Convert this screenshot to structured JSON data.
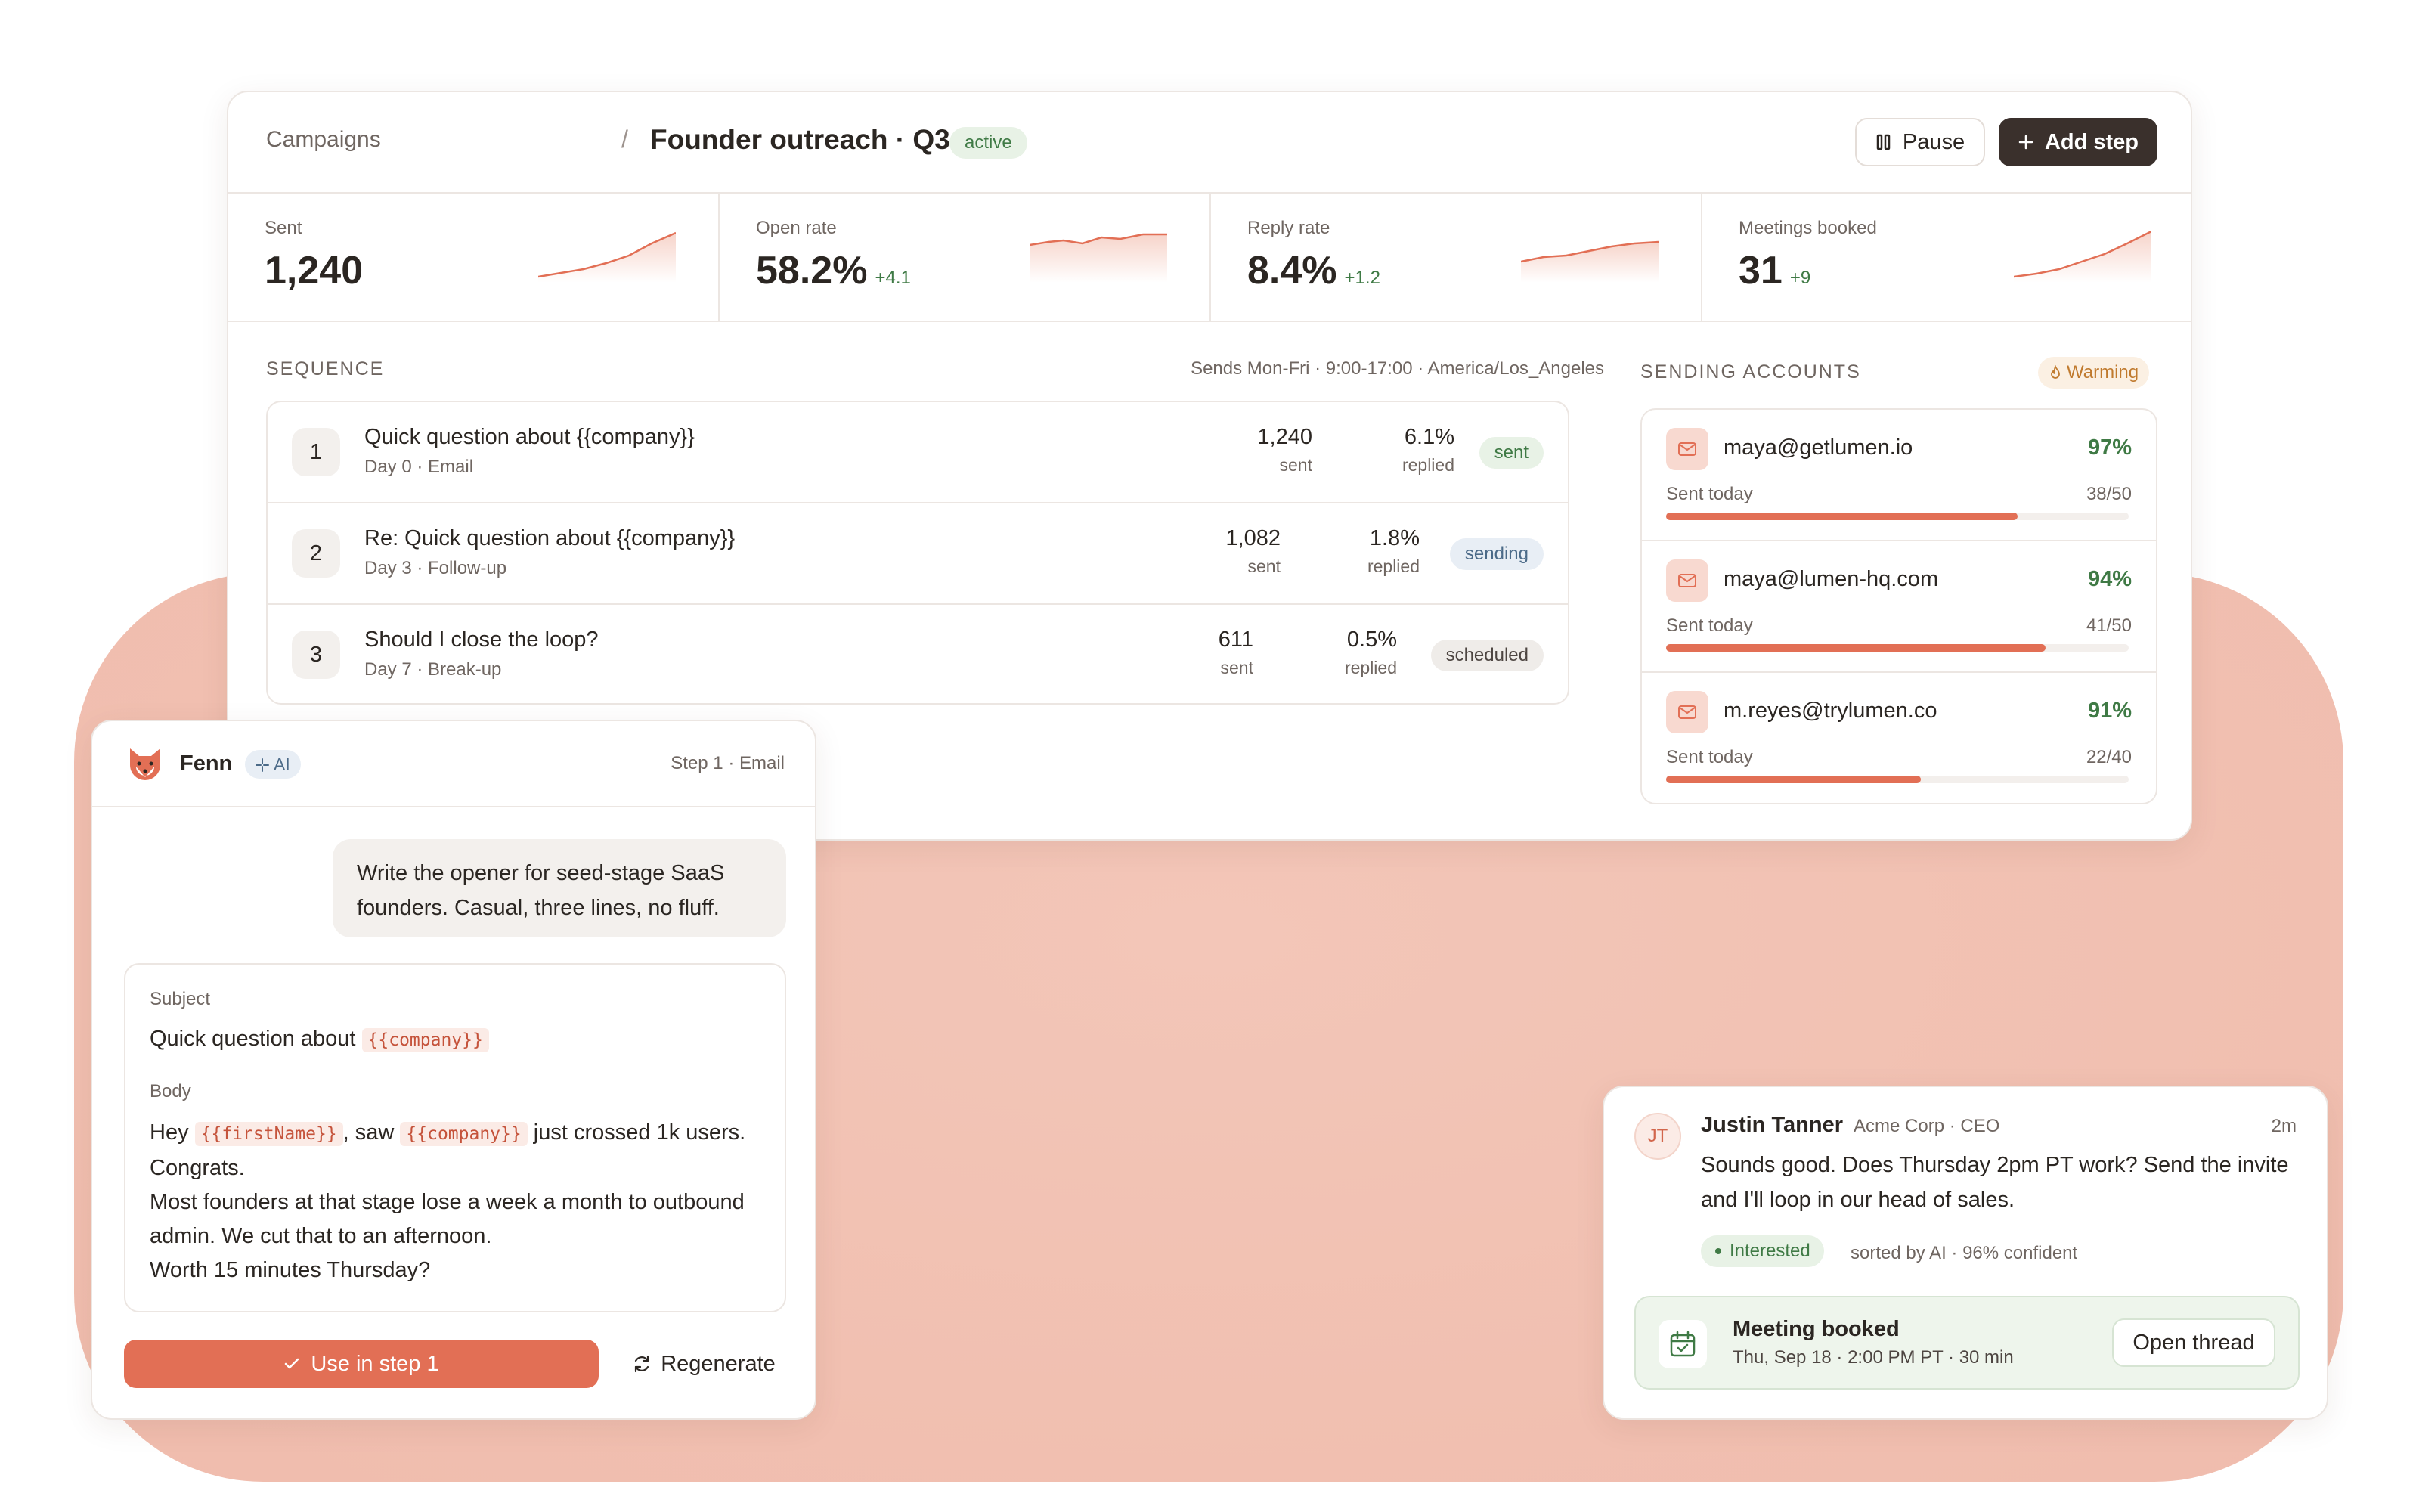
{
  "header": {
    "breadcrumb_root": "Campaigns",
    "breadcrumb_sep": "/",
    "title": "Founder outreach · Q3",
    "status": "active",
    "pause_label": "Pause",
    "add_step_label": "Add step"
  },
  "stats": [
    {
      "label": "Sent",
      "value": "1,240",
      "delta": ""
    },
    {
      "label": "Open rate",
      "value": "58.2%",
      "delta": "+4.1"
    },
    {
      "label": "Reply rate",
      "value": "8.4%",
      "delta": "+1.2"
    },
    {
      "label": "Meetings booked",
      "value": "31",
      "delta": "+9"
    }
  ],
  "sequence": {
    "label": "SEQUENCE",
    "schedule": "Sends Mon-Fri · 9:00-17:00 · America/Los_Angeles",
    "steps": [
      {
        "num": "1",
        "title": "Quick question about {{company}}",
        "sub": "Day 0 · Email",
        "sent": "1,240",
        "sent_lbl": "sent",
        "replied": "6.1%",
        "replied_lbl": "replied",
        "status": "sent"
      },
      {
        "num": "2",
        "title": "Re: Quick question about {{company}}",
        "sub": "Day 3 · Follow-up",
        "sent": "1,082",
        "sent_lbl": "sent",
        "replied": "1.8%",
        "replied_lbl": "replied",
        "status": "sending"
      },
      {
        "num": "3",
        "title": "Should I close the loop?",
        "sub": "Day 7 · Break-up",
        "sent": "611",
        "sent_lbl": "sent",
        "replied": "0.5%",
        "replied_lbl": "replied",
        "status": "scheduled"
      }
    ]
  },
  "accounts": {
    "label": "SENDING ACCOUNTS",
    "badge": "Warming",
    "items": [
      {
        "email": "maya@getlumen.io",
        "health": "97%",
        "sub": "Sent today",
        "count": "38/50",
        "progress": 0.76
      },
      {
        "email": "maya@lumen-hq.com",
        "health": "94%",
        "sub": "Sent today",
        "count": "41/50",
        "progress": 0.82
      },
      {
        "email": "m.reyes@trylumen.co",
        "health": "91%",
        "sub": "Sent today",
        "count": "22/40",
        "progress": 0.55
      }
    ]
  },
  "chat": {
    "name": "Fenn",
    "badge": "AI",
    "context": "Step 1 · Email",
    "prompt": "Write the opener for seed-stage SaaS founders. Casual, three lines, no fluff.",
    "subject_label": "Subject",
    "subject_text": "Quick question about",
    "subject_var": "{{company}}",
    "body_label": "Body",
    "body_hey": "Hey",
    "body_var1": "{{firstName}}",
    "body_saw": ", saw",
    "body_var2": "{{company}}",
    "body_rest1": "just crossed 1k users.",
    "body_line2": "Congrats.",
    "body_line3": "Most founders at that stage lose a week a month to outbound admin. We cut that to an afternoon.",
    "body_line4": "Worth 15 minutes Thursday?",
    "use_label": "Use in step 1",
    "regen_label": "Regenerate"
  },
  "reply": {
    "initials": "JT",
    "name": "Justin Tanner",
    "company": "Acme Corp · CEO",
    "time": "2m",
    "message": "Sounds good. Does Thursday 2pm PT work? Send the invite and I'll loop in our head of sales.",
    "tag": "Interested",
    "sort_note": "sorted by AI · 96% confident",
    "meeting_title": "Meeting booked",
    "meeting_sub": "Thu, Sep 18 · 2:00 PM PT · 30 min",
    "open_label": "Open thread"
  },
  "colors": {
    "accent": "#e26f55",
    "success": "#3f7a45",
    "dark": "#3a302c"
  }
}
